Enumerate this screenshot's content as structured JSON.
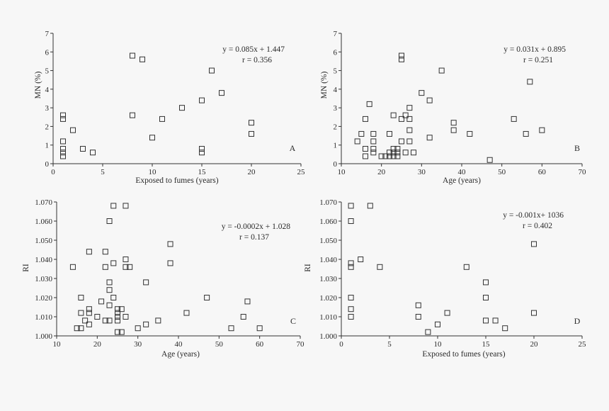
{
  "chart_data": [
    {
      "id": "A",
      "type": "scatter",
      "letter": "A",
      "xlabel": "Exposed to fumes (years)",
      "ylabel": "MN (%)",
      "xlim": [
        0,
        25
      ],
      "ylim": [
        0,
        7
      ],
      "xticks": [
        0,
        5,
        10,
        15,
        20,
        25
      ],
      "yticks": [
        0,
        1,
        2,
        3,
        4,
        5,
        6,
        7
      ],
      "xtick_labels": [
        "0",
        "5",
        "10",
        "15",
        "20",
        "25"
      ],
      "ytick_labels": [
        "0",
        "1",
        "2",
        "3",
        "4",
        "5",
        "6",
        "7"
      ],
      "equation": "y = 0.085x + 1.447",
      "r_text": "r = 0.356",
      "points": [
        [
          1,
          2.6
        ],
        [
          1,
          2.4
        ],
        [
          1,
          1.2
        ],
        [
          1,
          0.8
        ],
        [
          1,
          0.6
        ],
        [
          1,
          0.4
        ],
        [
          2,
          1.8
        ],
        [
          3,
          0.8
        ],
        [
          4,
          0.6
        ],
        [
          8,
          5.8
        ],
        [
          9,
          5.6
        ],
        [
          8,
          2.6
        ],
        [
          10,
          1.4
        ],
        [
          11,
          2.4
        ],
        [
          13,
          3.0
        ],
        [
          15,
          3.4
        ],
        [
          15,
          0.8
        ],
        [
          15,
          0.6
        ],
        [
          16,
          5.0
        ],
        [
          17,
          3.8
        ],
        [
          20,
          2.2
        ],
        [
          20,
          1.6
        ]
      ]
    },
    {
      "id": "B",
      "type": "scatter",
      "letter": "B",
      "xlabel": "Age (years)",
      "ylabel": "MN (%)",
      "xlim": [
        10,
        70
      ],
      "ylim": [
        0,
        7
      ],
      "xticks": [
        10,
        20,
        30,
        40,
        50,
        60,
        70
      ],
      "yticks": [
        0,
        1,
        2,
        3,
        4,
        5,
        6,
        7
      ],
      "xtick_labels": [
        "10",
        "20",
        "30",
        "40",
        "50",
        "60",
        "70"
      ],
      "ytick_labels": [
        "0",
        "1",
        "2",
        "3",
        "4",
        "5",
        "6",
        "7"
      ],
      "equation": "y = 0.031x + 0.895",
      "r_text": "r = 0.251",
      "points": [
        [
          14,
          1.2
        ],
        [
          15,
          1.6
        ],
        [
          16,
          2.4
        ],
        [
          16,
          0.8
        ],
        [
          16,
          0.4
        ],
        [
          17,
          3.2
        ],
        [
          18,
          1.6
        ],
        [
          18,
          1.2
        ],
        [
          18,
          0.8
        ],
        [
          18,
          0.6
        ],
        [
          20,
          0.4
        ],
        [
          21,
          0.4
        ],
        [
          22,
          1.6
        ],
        [
          22,
          0.6
        ],
        [
          22,
          0.4
        ],
        [
          23,
          2.6
        ],
        [
          23,
          0.8
        ],
        [
          23,
          0.6
        ],
        [
          23,
          0.4
        ],
        [
          24,
          0.8
        ],
        [
          24,
          0.6
        ],
        [
          24,
          0.4
        ],
        [
          25,
          5.8
        ],
        [
          25,
          5.6
        ],
        [
          25,
          2.4
        ],
        [
          25,
          1.2
        ],
        [
          26,
          2.6
        ],
        [
          26,
          0.6
        ],
        [
          27,
          3.0
        ],
        [
          27,
          2.4
        ],
        [
          27,
          1.8
        ],
        [
          27,
          1.2
        ],
        [
          28,
          0.6
        ],
        [
          30,
          3.8
        ],
        [
          32,
          3.4
        ],
        [
          32,
          1.4
        ],
        [
          35,
          5.0
        ],
        [
          38,
          2.2
        ],
        [
          38,
          1.8
        ],
        [
          42,
          1.6
        ],
        [
          47,
          0.2
        ],
        [
          53,
          2.4
        ],
        [
          56,
          1.6
        ],
        [
          57,
          4.4
        ],
        [
          60,
          1.8
        ]
      ]
    },
    {
      "id": "C",
      "type": "scatter",
      "letter": "C",
      "xlabel": "Age (years)",
      "ylabel": "RI",
      "xlim": [
        10,
        70
      ],
      "ylim": [
        1.0,
        1.07
      ],
      "xticks": [
        10,
        20,
        30,
        40,
        50,
        60,
        70
      ],
      "yticks": [
        1.0,
        1.01,
        1.02,
        1.03,
        1.04,
        1.05,
        1.06,
        1.07
      ],
      "xtick_labels": [
        "10",
        "20",
        "30",
        "40",
        "50",
        "60",
        "70"
      ],
      "ytick_labels": [
        "1.000",
        "1.010",
        "1.020",
        "1.030",
        "1.040",
        "1.050",
        "1.060",
        "1.070"
      ],
      "equation": "y = -0.0002x + 1.028",
      "r_text": "r = 0.137",
      "points": [
        [
          14,
          1.036
        ],
        [
          15,
          1.004
        ],
        [
          16,
          1.004
        ],
        [
          16,
          1.012
        ],
        [
          16,
          1.02
        ],
        [
          17,
          1.008
        ],
        [
          18,
          1.044
        ],
        [
          18,
          1.014
        ],
        [
          18,
          1.012
        ],
        [
          18,
          1.006
        ],
        [
          20,
          1.01
        ],
        [
          21,
          1.018
        ],
        [
          22,
          1.044
        ],
        [
          22,
          1.036
        ],
        [
          22,
          1.008
        ],
        [
          23,
          1.06
        ],
        [
          23,
          1.028
        ],
        [
          23,
          1.024
        ],
        [
          23,
          1.016
        ],
        [
          23,
          1.008
        ],
        [
          24,
          1.068
        ],
        [
          24,
          1.038
        ],
        [
          24,
          1.02
        ],
        [
          25,
          1.014
        ],
        [
          25,
          1.012
        ],
        [
          25,
          1.01
        ],
        [
          25,
          1.008
        ],
        [
          25,
          1.002
        ],
        [
          26,
          1.014
        ],
        [
          26,
          1.002
        ],
        [
          27,
          1.068
        ],
        [
          27,
          1.04
        ],
        [
          27,
          1.036
        ],
        [
          27,
          1.01
        ],
        [
          28,
          1.036
        ],
        [
          30,
          1.004
        ],
        [
          32,
          1.028
        ],
        [
          32,
          1.006
        ],
        [
          35,
          1.008
        ],
        [
          38,
          1.048
        ],
        [
          38,
          1.038
        ],
        [
          42,
          1.012
        ],
        [
          47,
          1.02
        ],
        [
          53,
          1.004
        ],
        [
          56,
          1.01
        ],
        [
          57,
          1.018
        ],
        [
          60,
          1.004
        ]
      ]
    },
    {
      "id": "D",
      "type": "scatter",
      "letter": "D",
      "xlabel": "Exposed to fumes (years)",
      "ylabel": "RI",
      "xlim": [
        0,
        25
      ],
      "ylim": [
        1.0,
        1.07
      ],
      "xticks": [
        0,
        5,
        10,
        15,
        20,
        25
      ],
      "yticks": [
        1.0,
        1.01,
        1.02,
        1.03,
        1.04,
        1.05,
        1.06,
        1.07
      ],
      "xtick_labels": [
        "0",
        "5",
        "10",
        "15",
        "20",
        "25"
      ],
      "ytick_labels": [
        "1.000",
        "1.010",
        "1.020",
        "1.030",
        "1.040",
        "1.050",
        "1.060",
        "1.070"
      ],
      "equation": "y = -0.001x+ 1036",
      "r_text": "r = 0.402",
      "points": [
        [
          1,
          1.068
        ],
        [
          1,
          1.06
        ],
        [
          1,
          1.038
        ],
        [
          1,
          1.036
        ],
        [
          1,
          1.02
        ],
        [
          1,
          1.014
        ],
        [
          1,
          1.01
        ],
        [
          2,
          1.04
        ],
        [
          3,
          1.068
        ],
        [
          4,
          1.036
        ],
        [
          8,
          1.016
        ],
        [
          8,
          1.01
        ],
        [
          9,
          1.002
        ],
        [
          10,
          1.006
        ],
        [
          11,
          1.012
        ],
        [
          13,
          1.036
        ],
        [
          15,
          1.028
        ],
        [
          15,
          1.02
        ],
        [
          15,
          1.008
        ],
        [
          16,
          1.008
        ],
        [
          17,
          1.004
        ],
        [
          20,
          1.048
        ],
        [
          20,
          1.012
        ]
      ]
    }
  ]
}
